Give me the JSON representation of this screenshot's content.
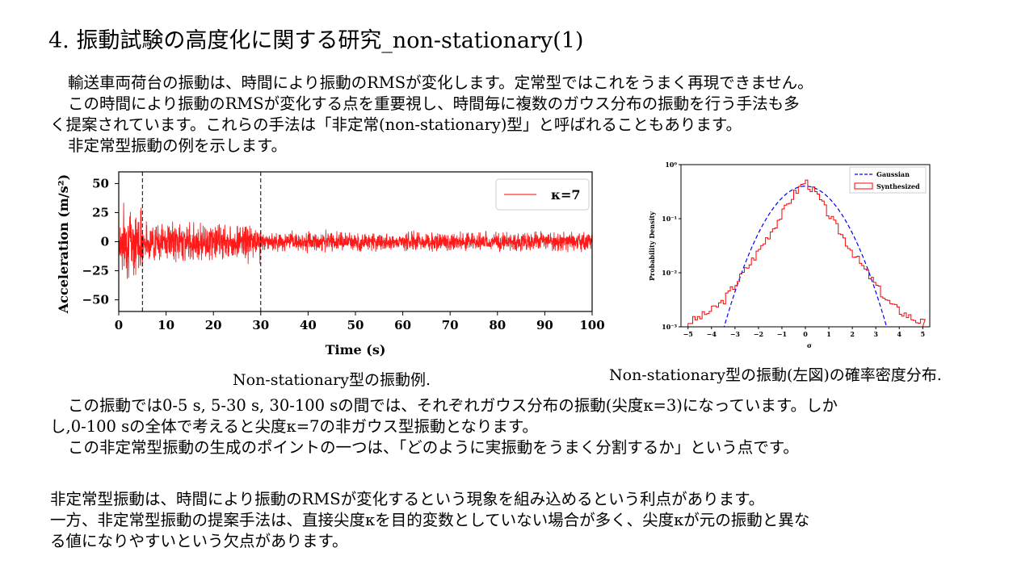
{
  "title": "4. 振動試験の高度化に関する研究_non-stationary(1)",
  "intro": [
    "輸送車両荷台の振動は、時間により振動のRMSが変化します。定常型ではこれをうまく再現できません。",
    "この時間により振動のRMSが変化する点を重要視し、時間毎に複数のガウス分布の振動を行う手法も多",
    "く提案されています。これらの手法は「非定常(non-stationary)型」と呼ばれることもあります。",
    "非定常型振動の例を示します。"
  ],
  "figure_left": {
    "caption": "Non-stationary型の振動例.",
    "ylabel": "Acceleration (m/s²)",
    "xlabel": "Time (s)",
    "legend": "κ=7"
  },
  "figure_right": {
    "caption": "Non-stationary型の振動(左図)の確率密度分布.",
    "ylabel": "Probability Density",
    "xlabel": "σ",
    "legend_gaussian": "Gaussian",
    "legend_synth": "Synthesized"
  },
  "body2": [
    "この振動では0-5 s, 5-30 s, 30-100 sの間では、それぞれガウス分布の振動(尖度κ=3)になっています。しか",
    "し,0-100 sの全体で考えると尖度κ=7の非ガウス型振動となります。",
    "この非定常型振動の生成のポイントの一つは、「どのように実振動をうまく分割するか」という点です。"
  ],
  "body3": [
    "非定常型振動は、時間により振動のRMSが変化するという現象を組み込めるという利点があります。",
    "一方、非定常型振動の提案手法は、直接尖度κを目的変数としていない場合が多く、尖度κが元の振動と異な",
    "る値になりやすいという欠点があります。"
  ],
  "chart_data": [
    {
      "type": "line",
      "xlabel": "Time (s)",
      "ylabel": "Acceleration (m/s²)",
      "xlim": [
        0,
        100
      ],
      "ylim": [
        -60,
        60
      ],
      "xticks": [
        0,
        10,
        20,
        30,
        40,
        50,
        60,
        70,
        80,
        90,
        100
      ],
      "yticks": [
        50,
        25,
        0,
        -25,
        -50
      ],
      "ytick_labels": [
        "50",
        "25",
        "0",
        "−25",
        "−50"
      ],
      "series": [
        {
          "name": "κ=7",
          "color": "#ff0000",
          "segments": [
            {
              "t_start": 0,
              "t_end": 5,
              "amplitude": 40
            },
            {
              "t_start": 5,
              "t_end": 30,
              "amplitude": 22
            },
            {
              "t_start": 30,
              "t_end": 100,
              "amplitude": 11
            }
          ]
        }
      ],
      "vlines": [
        5,
        30
      ],
      "legend_position": "top-right"
    },
    {
      "type": "line",
      "yscale": "log",
      "xlabel": "σ",
      "ylabel": "Probability Density",
      "xlim": [
        -5.3,
        5.3
      ],
      "ylim": [
        0.001,
        1
      ],
      "xticks": [
        -5,
        -4,
        -3,
        -2,
        -1,
        0,
        1,
        2,
        3,
        4,
        5
      ],
      "ytick_labels": [
        "10⁰",
        "10⁻¹",
        "10⁻²",
        "10⁻³"
      ],
      "series": [
        {
          "name": "Gaussian",
          "color": "#0000ff",
          "style": "dashed"
        },
        {
          "name": "Synthesized",
          "color": "#ff0000",
          "style": "step",
          "x": [
            -5,
            -4.5,
            -4,
            -3.5,
            -3,
            -2.5,
            -2,
            -1.5,
            -1,
            -0.5,
            0,
            0.5,
            1,
            1.5,
            2,
            2.5,
            3,
            3.5,
            4,
            4.5,
            5
          ],
          "y": [
            0.0012,
            0.0015,
            0.002,
            0.003,
            0.006,
            0.012,
            0.025,
            0.055,
            0.12,
            0.28,
            0.5,
            0.28,
            0.12,
            0.055,
            0.025,
            0.012,
            0.006,
            0.003,
            0.002,
            0.0015,
            0.0012
          ]
        }
      ],
      "legend_position": "top-right"
    }
  ]
}
